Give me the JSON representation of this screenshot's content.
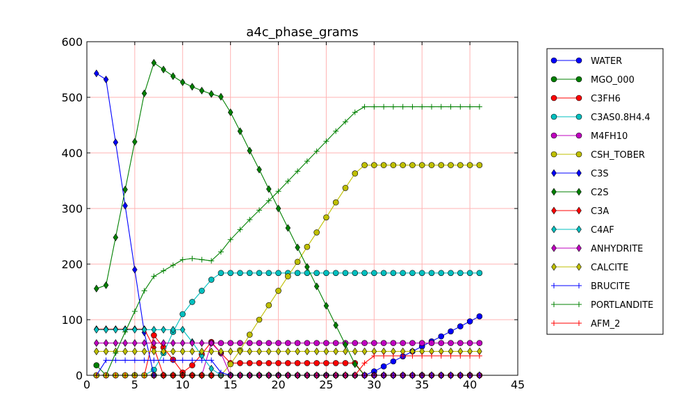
{
  "chart_data": {
    "type": "line",
    "title": "a4c_phase_grams",
    "xlabel": "",
    "ylabel": "",
    "xlim": [
      0,
      45
    ],
    "ylim": [
      0,
      600
    ],
    "xticks": [
      0,
      5,
      10,
      15,
      20,
      25,
      30,
      35,
      40,
      45
    ],
    "yticks": [
      0,
      100,
      200,
      300,
      400,
      500,
      600
    ],
    "grid": true,
    "grid_color": "#ffb3b3",
    "legend_position": "outside-right",
    "x": [
      1,
      2,
      3,
      4,
      5,
      6,
      7,
      8,
      9,
      10,
      11,
      12,
      13,
      14,
      15,
      16,
      17,
      18,
      19,
      20,
      21,
      22,
      23,
      24,
      25,
      26,
      27,
      28,
      29,
      30,
      31,
      32,
      33,
      34,
      35,
      36,
      37,
      38,
      39,
      40,
      41
    ],
    "series": [
      {
        "name": "WATER",
        "color": "#0000ff",
        "marker": "circle",
        "values": [
          0,
          0,
          0,
          0,
          0,
          0,
          0,
          0,
          0,
          0,
          0,
          0,
          0,
          0,
          0,
          0,
          0,
          0,
          0,
          0,
          0,
          0,
          0,
          0,
          0,
          0,
          0,
          0,
          0,
          7,
          16,
          25,
          34,
          43,
          52,
          61,
          70,
          79,
          88,
          97,
          106
        ]
      },
      {
        "name": "MGO_000",
        "color": "#008000",
        "marker": "circle",
        "values": [
          18,
          0,
          0,
          0,
          0,
          0,
          0,
          0,
          0,
          0,
          0,
          0,
          0,
          0,
          0,
          0,
          0,
          0,
          0,
          0,
          0,
          0,
          0,
          0,
          0,
          0,
          0,
          0,
          0,
          0,
          0,
          0,
          0,
          0,
          0,
          0,
          0,
          0,
          0,
          0,
          0
        ]
      },
      {
        "name": "C3FH6",
        "color": "#ff0000",
        "marker": "circle",
        "values": [
          0,
          0,
          0,
          0,
          0,
          0,
          72,
          50,
          28,
          5,
          18,
          38,
          60,
          40,
          22,
          22,
          22,
          22,
          22,
          22,
          22,
          22,
          22,
          22,
          22,
          22,
          22,
          22,
          0,
          0,
          0,
          0,
          0,
          0,
          0,
          0,
          0,
          0,
          0,
          0,
          0
        ]
      },
      {
        "name": "C3AS0.8H4.4",
        "color": "#00bfbf",
        "marker": "circle",
        "values": [
          0,
          0,
          0,
          0,
          0,
          0,
          10,
          40,
          78,
          110,
          132,
          152,
          172,
          184,
          184,
          184,
          184,
          184,
          184,
          184,
          184,
          184,
          184,
          184,
          184,
          184,
          184,
          184,
          184,
          184,
          184,
          184,
          184,
          184,
          184,
          184,
          184,
          184,
          184,
          184,
          184
        ]
      },
      {
        "name": "M4FH10",
        "color": "#bf00bf",
        "marker": "circle",
        "values": [
          0,
          0,
          0,
          0,
          0,
          0,
          0,
          0,
          0,
          0,
          0,
          0,
          58,
          58,
          58,
          58,
          58,
          58,
          58,
          58,
          58,
          58,
          58,
          58,
          58,
          58,
          58,
          58,
          58,
          58,
          58,
          58,
          58,
          58,
          58,
          58,
          58,
          58,
          58,
          58,
          58
        ]
      },
      {
        "name": "CSH_TOBER",
        "color": "#bfbf00",
        "marker": "circle",
        "values": [
          0,
          0,
          0,
          0,
          0,
          0,
          0,
          0,
          0,
          0,
          0,
          0,
          0,
          0,
          20,
          45,
          73,
          100,
          126,
          152,
          178,
          204,
          231,
          257,
          284,
          311,
          337,
          363,
          378,
          378,
          378,
          378,
          378,
          378,
          378,
          378,
          378,
          378,
          378,
          378,
          378
        ]
      },
      {
        "name": "C3S",
        "color": "#0000ff",
        "marker": "diamond",
        "values": [
          543,
          532,
          419,
          305,
          190,
          77,
          0,
          0,
          0,
          0,
          0,
          0,
          0,
          0,
          0,
          0,
          0,
          0,
          0,
          0,
          0,
          0,
          0,
          0,
          0,
          0,
          0,
          0,
          0,
          0,
          0,
          0,
          0,
          0,
          0,
          0,
          0,
          0,
          0,
          0,
          0
        ]
      },
      {
        "name": "C2S",
        "color": "#008000",
        "marker": "diamond",
        "values": [
          156,
          162,
          248,
          334,
          420,
          507,
          562,
          550,
          538,
          527,
          519,
          512,
          506,
          501,
          473,
          439,
          404,
          370,
          335,
          300,
          265,
          230,
          195,
          160,
          125,
          90,
          55,
          20,
          0,
          0,
          0,
          0,
          0,
          0,
          0,
          0,
          0,
          0,
          0,
          0,
          0
        ]
      },
      {
        "name": "C3A",
        "color": "#ff0000",
        "marker": "diamond",
        "values": [
          83,
          83,
          83,
          83,
          83,
          83,
          50,
          0,
          0,
          0,
          0,
          0,
          0,
          0,
          0,
          0,
          0,
          0,
          0,
          0,
          0,
          0,
          0,
          0,
          0,
          0,
          0,
          0,
          0,
          0,
          0,
          0,
          0,
          0,
          0,
          0,
          0,
          0,
          0,
          0,
          0
        ]
      },
      {
        "name": "C4AF",
        "color": "#00bfbf",
        "marker": "diamond",
        "values": [
          82,
          82,
          82,
          82,
          82,
          82,
          82,
          82,
          82,
          82,
          60,
          35,
          12,
          0,
          0,
          0,
          0,
          0,
          0,
          0,
          0,
          0,
          0,
          0,
          0,
          0,
          0,
          0,
          0,
          0,
          0,
          0,
          0,
          0,
          0,
          0,
          0,
          0,
          0,
          0,
          0
        ]
      },
      {
        "name": "ANHYDRITE",
        "color": "#bf00bf",
        "marker": "diamond",
        "values": [
          58,
          58,
          58,
          58,
          58,
          58,
          58,
          58,
          58,
          58,
          58,
          58,
          58,
          40,
          0,
          0,
          0,
          0,
          0,
          0,
          0,
          0,
          0,
          0,
          0,
          0,
          0,
          0,
          0,
          0,
          0,
          0,
          0,
          0,
          0,
          0,
          0,
          0,
          0,
          0,
          0
        ]
      },
      {
        "name": "CALCITE",
        "color": "#bfbf00",
        "marker": "diamond",
        "values": [
          43,
          43,
          43,
          43,
          43,
          43,
          43,
          43,
          43,
          43,
          43,
          43,
          43,
          43,
          43,
          43,
          43,
          43,
          43,
          43,
          43,
          43,
          43,
          43,
          43,
          43,
          43,
          43,
          43,
          43,
          43,
          43,
          43,
          43,
          43,
          43,
          43,
          43,
          43,
          43,
          43
        ]
      },
      {
        "name": "BRUCITE",
        "color": "#0000ff",
        "marker": "plus",
        "values": [
          0,
          27,
          27,
          27,
          27,
          27,
          27,
          27,
          27,
          27,
          27,
          27,
          27,
          5,
          0,
          0,
          0,
          0,
          0,
          0,
          0,
          0,
          0,
          0,
          0,
          0,
          0,
          0,
          0,
          0,
          0,
          0,
          0,
          0,
          0,
          0,
          0,
          0,
          0,
          0,
          0
        ]
      },
      {
        "name": "PORTLANDITE",
        "color": "#008000",
        "marker": "plus",
        "values": [
          0,
          0,
          40,
          78,
          115,
          152,
          178,
          188,
          198,
          208,
          210,
          208,
          206,
          222,
          244,
          262,
          280,
          297,
          314,
          331,
          349,
          367,
          385,
          403,
          421,
          439,
          456,
          473,
          483,
          483,
          483,
          483,
          483,
          483,
          483,
          483,
          483,
          483,
          483,
          483,
          483
        ]
      },
      {
        "name": "AFM_2",
        "color": "#ff0000",
        "marker": "plus",
        "values": [
          0,
          0,
          0,
          0,
          0,
          0,
          0,
          0,
          0,
          0,
          0,
          0,
          0,
          0,
          0,
          0,
          0,
          0,
          0,
          0,
          0,
          0,
          0,
          0,
          0,
          0,
          0,
          0,
          22,
          35,
          35,
          35,
          35,
          35,
          35,
          35,
          35,
          35,
          35,
          35,
          35
        ]
      }
    ]
  }
}
